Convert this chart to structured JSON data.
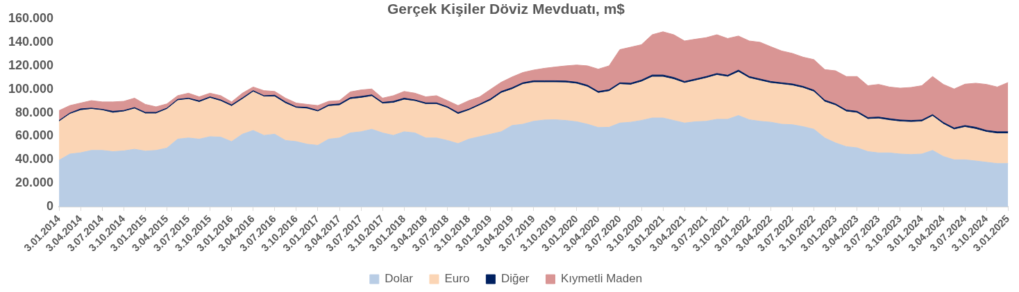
{
  "chart_data": {
    "type": "area",
    "title": "Gerçek Kişiler Döviz Mevduatı, m$",
    "stacked": true,
    "legend": "bottom",
    "categories": [
      "3.01.2014",
      null,
      "3.04.2014",
      null,
      "3.07.2014",
      null,
      "3.10.2014",
      null,
      "3.01.2015",
      null,
      "3.04.2015",
      null,
      "3.07.2015",
      null,
      "3.10.2015",
      null,
      "3.01.2016",
      null,
      "3.04.2016",
      null,
      "3.07.2016",
      null,
      "3.10.2016",
      null,
      "3.01.2017",
      null,
      "3.04.2017",
      null,
      "3.07.2017",
      null,
      "3.10.2017",
      null,
      "3.01.2018",
      null,
      "3.04.2018",
      null,
      "3.07.2018",
      null,
      "3.10.2018",
      null,
      "3.01.2019",
      null,
      "3.04.2019",
      null,
      "3.07.2019",
      null,
      "3.10.2019",
      null,
      "3.01.2020",
      null,
      "3.04.2020",
      null,
      "3.07.2020",
      null,
      "3.10.2020",
      null,
      "3.01.2021",
      null,
      "3.04.2021",
      null,
      "3.07.2021",
      null,
      "3.10.2021",
      null,
      "3.01.2022",
      null,
      "3.04.2022",
      null,
      "3.07.2022",
      null,
      "3.10.2022",
      null,
      "3.01.2023",
      null,
      "3.04.2023",
      null,
      "3.07.2023",
      null,
      "3.10.2023",
      null,
      "3.01.2024",
      null,
      "3.04.2024",
      null,
      "3.07.2024",
      null,
      "3.10.2024",
      null,
      "3.01.2025"
    ],
    "ylim": [
      0,
      160000
    ],
    "yticks": [
      0,
      {
        "value": 20000,
        "label": "20.000"
      },
      {
        "value": 40000,
        "label": "40.000"
      },
      {
        "value": 60000,
        "label": "60.000"
      },
      {
        "value": 80000,
        "label": "80.000"
      },
      {
        "value": 100000,
        "label": "100.000"
      },
      {
        "value": 120000,
        "label": "120.000"
      },
      {
        "value": 140000,
        "label": "140.000"
      },
      {
        "value": 160000,
        "label": "160.000"
      }
    ],
    "series": [
      {
        "name": "Dolar",
        "color": "#b9cde5",
        "values": [
          39600,
          44900,
          46000,
          48000,
          48000,
          47000,
          47600,
          49000,
          47400,
          48000,
          50000,
          57600,
          58600,
          57600,
          59700,
          59300,
          55500,
          61800,
          65000,
          60800,
          61800,
          56500,
          55500,
          53300,
          52300,
          57600,
          58600,
          62900,
          63900,
          66000,
          62900,
          60800,
          63900,
          62900,
          58600,
          58600,
          56500,
          53800,
          57600,
          59700,
          61800,
          63900,
          69200,
          70300,
          72800,
          73900,
          74100,
          73500,
          72400,
          70300,
          67500,
          67700,
          71300,
          72000,
          73500,
          75600,
          75600,
          73500,
          71300,
          72400,
          72800,
          74500,
          74500,
          77700,
          74100,
          72800,
          72000,
          70300,
          69900,
          68200,
          66000,
          58600,
          54400,
          51200,
          50200,
          47000,
          45900,
          45900,
          44900,
          44500,
          44900,
          48000,
          42800,
          40000,
          40000,
          39000,
          37900,
          36800,
          36800
        ]
      },
      {
        "name": "Euro",
        "color": "#fbd5b5",
        "values": [
          32800,
          33900,
          36000,
          35000,
          34000,
          32800,
          33300,
          34400,
          31800,
          31200,
          33000,
          32800,
          32900,
          31300,
          32800,
          30500,
          30000,
          29700,
          32800,
          32800,
          31800,
          31400,
          28500,
          30100,
          28600,
          27900,
          27600,
          28600,
          28600,
          28000,
          24700,
          27500,
          27100,
          26900,
          28600,
          28600,
          27500,
          25000,
          24400,
          26500,
          28600,
          32800,
          30700,
          33900,
          33000,
          31900,
          31700,
          32100,
          32200,
          31700,
          29200,
          30500,
          32900,
          31700,
          32800,
          34900,
          34900,
          34900,
          33900,
          34900,
          36600,
          37500,
          36000,
          37000,
          35300,
          34500,
          33200,
          33900,
          33200,
          32800,
          31800,
          30700,
          31800,
          29700,
          29600,
          27500,
          29000,
          27600,
          27500,
          27500,
          27500,
          29100,
          27500,
          25600,
          27700,
          27000,
          25600,
          25400,
          25400
        ]
      },
      {
        "name": "Diğer",
        "color": "#002060",
        "values": [
          1100,
          1000,
          1400,
          1000,
          1000,
          1500,
          1100,
          1100,
          1200,
          1200,
          1000,
          1100,
          1000,
          1300,
          1100,
          1200,
          1300,
          1200,
          1100,
          1000,
          1400,
          1400,
          1100,
          1300,
          1100,
          1300,
          1400,
          1400,
          1500,
          1300,
          1300,
          1500,
          1500,
          1200,
          1300,
          1300,
          1300,
          1400,
          1200,
          1200,
          1500,
          1500,
          1500,
          1400,
          1500,
          1500,
          1500,
          1500,
          1500,
          1500,
          1500,
          1500,
          1400,
          1500,
          1600,
          1700,
          1700,
          1700,
          1500,
          1500,
          1500,
          1500,
          1500,
          1700,
          1500,
          1500,
          1500,
          1400,
          1500,
          1500,
          1500,
          1500,
          1400,
          1500,
          1500,
          1500,
          1500,
          1500,
          1500,
          1500,
          1500,
          1400,
          1500,
          1500,
          1500,
          1700,
          1500,
          1700,
          1700
        ]
      },
      {
        "name": "Kıymetli Maden",
        "color": "#d99594",
        "values": [
          8400,
          6400,
          4900,
          6400,
          6300,
          8000,
          7800,
          8000,
          6800,
          4700,
          3600,
          3100,
          4200,
          3400,
          3100,
          3600,
          2500,
          4000,
          3100,
          4300,
          3200,
          3200,
          3200,
          2500,
          4200,
          3000,
          2800,
          4900,
          5500,
          5000,
          3600,
          4800,
          5700,
          5700,
          5100,
          6100,
          5100,
          6000,
          7200,
          6200,
          8000,
          7800,
          9100,
          8700,
          9100,
          10600,
          11700,
          12900,
          14600,
          16500,
          19000,
          20300,
          28200,
          30700,
          30100,
          34300,
          36800,
          36400,
          34500,
          33900,
          33100,
          33000,
          31300,
          29000,
          30300,
          31300,
          29600,
          27100,
          26000,
          24900,
          26000,
          26000,
          28200,
          28500,
          29600,
          27100,
          27800,
          27000,
          27100,
          28100,
          29200,
          32400,
          32400,
          33200,
          35200,
          37500,
          39200,
          38100,
          41900
        ]
      }
    ]
  }
}
